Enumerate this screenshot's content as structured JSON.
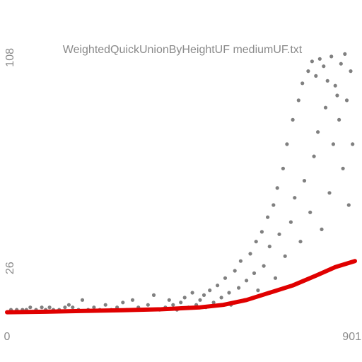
{
  "chart_data": {
    "type": "scatter",
    "title": "WeightedQuickUnionByHeightUF mediumUF.txt",
    "x_ticks": [
      "0",
      "901"
    ],
    "y_ticks": [
      "26",
      "108"
    ],
    "xlim": [
      0,
      901
    ],
    "ylim": [
      0,
      108
    ],
    "grid": false,
    "colors": {
      "points": "#808080",
      "trend": "#e00000",
      "text": "#8a8a8a"
    },
    "series": [
      {
        "values": [
          [
            10,
            2
          ],
          [
            25,
            2
          ],
          [
            40,
            2
          ],
          [
            50,
            2
          ],
          [
            60,
            3
          ],
          [
            75,
            2
          ],
          [
            90,
            3
          ],
          [
            100,
            2
          ],
          [
            110,
            3
          ],
          [
            120,
            2
          ],
          [
            135,
            2
          ],
          [
            150,
            3
          ],
          [
            160,
            4
          ],
          [
            170,
            3
          ],
          [
            185,
            2
          ],
          [
            195,
            6
          ],
          [
            210,
            2
          ],
          [
            225,
            3
          ],
          [
            240,
            2
          ],
          [
            255,
            4
          ],
          [
            270,
            2
          ],
          [
            285,
            3
          ],
          [
            300,
            5
          ],
          [
            310,
            2
          ],
          [
            325,
            6
          ],
          [
            340,
            3
          ],
          [
            355,
            2
          ],
          [
            365,
            4
          ],
          [
            380,
            8
          ],
          [
            395,
            2
          ],
          [
            410,
            3
          ],
          [
            420,
            6
          ],
          [
            430,
            4
          ],
          [
            440,
            2
          ],
          [
            450,
            5
          ],
          [
            460,
            7
          ],
          [
            470,
            3
          ],
          [
            480,
            9
          ],
          [
            490,
            4
          ],
          [
            500,
            6
          ],
          [
            510,
            8
          ],
          [
            515,
            3
          ],
          [
            525,
            10
          ],
          [
            535,
            5
          ],
          [
            545,
            12
          ],
          [
            555,
            7
          ],
          [
            565,
            15
          ],
          [
            575,
            9
          ],
          [
            580,
            4
          ],
          [
            590,
            18
          ],
          [
            600,
            11
          ],
          [
            605,
            22
          ],
          [
            615,
            6
          ],
          [
            620,
            14
          ],
          [
            630,
            25
          ],
          [
            640,
            17
          ],
          [
            645,
            30
          ],
          [
            650,
            10
          ],
          [
            660,
            34
          ],
          [
            665,
            20
          ],
          [
            675,
            40
          ],
          [
            680,
            28
          ],
          [
            690,
            45
          ],
          [
            695,
            15
          ],
          [
            700,
            52
          ],
          [
            705,
            33
          ],
          [
            715,
            60
          ],
          [
            720,
            24
          ],
          [
            725,
            70
          ],
          [
            735,
            38
          ],
          [
            740,
            80
          ],
          [
            745,
            48
          ],
          [
            755,
            88
          ],
          [
            760,
            30
          ],
          [
            765,
            95
          ],
          [
            770,
            55
          ],
          [
            780,
            100
          ],
          [
            785,
            42
          ],
          [
            790,
            104
          ],
          [
            795,
            65
          ],
          [
            800,
            98
          ],
          [
            805,
            75
          ],
          [
            810,
            105
          ],
          [
            815,
            35
          ],
          [
            820,
            102
          ],
          [
            825,
            85
          ],
          [
            830,
            96
          ],
          [
            835,
            50
          ],
          [
            840,
            106
          ],
          [
            845,
            70
          ],
          [
            850,
            94
          ],
          [
            855,
            90
          ],
          [
            860,
            80
          ],
          [
            865,
            103
          ],
          [
            870,
            60
          ],
          [
            875,
            107
          ],
          [
            880,
            88
          ],
          [
            885,
            45
          ],
          [
            890,
            100
          ],
          [
            895,
            70
          ]
        ]
      },
      {
        "values": [
          [
            0,
            1
          ],
          [
            100,
            1.2
          ],
          [
            200,
            1.5
          ],
          [
            300,
            1.8
          ],
          [
            400,
            2.2
          ],
          [
            500,
            3.0
          ],
          [
            560,
            4.0
          ],
          [
            620,
            6.0
          ],
          [
            680,
            9.0
          ],
          [
            740,
            12.0
          ],
          [
            800,
            16.0
          ],
          [
            850,
            19.5
          ],
          [
            901,
            22.0
          ]
        ]
      }
    ]
  }
}
